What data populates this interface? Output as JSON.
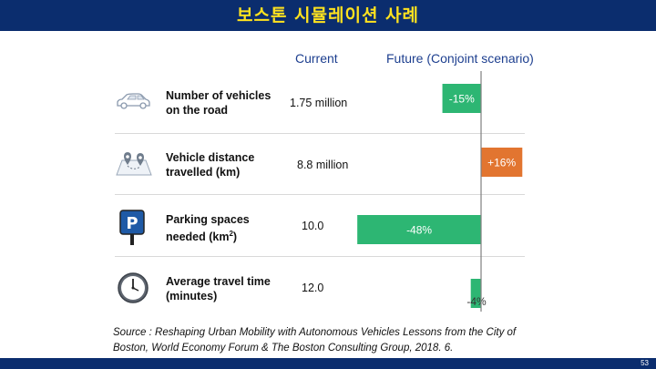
{
  "slide": {
    "title": "보스톤 시뮬레이션 사례",
    "page_number": "53"
  },
  "headers": {
    "current": "Current",
    "future": "Future (Conjoint scenario)"
  },
  "rows": [
    {
      "label_line1": "Number of vehicles",
      "label_line2": "on the road",
      "current": "1.75 million",
      "change_label": "-15%",
      "icon": "car-icon"
    },
    {
      "label_line1": "Vehicle distance",
      "label_line2": "travelled (km)",
      "current": "8.8 million",
      "change_label": "+16%",
      "icon": "map-pin-icon"
    },
    {
      "label_line1": "Parking spaces",
      "label_line2": "needed (km",
      "label_sup": "2",
      "label_close": ")",
      "current": "10.0",
      "change_label": "-48%",
      "icon": "parking-sign-icon"
    },
    {
      "label_line1": "Average travel time",
      "label_line2": "(minutes)",
      "current": "12.0",
      "change_label": "-4%",
      "icon": "clock-icon"
    }
  ],
  "source": "Source : Reshaping Urban Mobility with Autonomous Vehicles Lessons from the City of Boston, World Economy Forum & The Boston Consulting Group, 2018. 6.",
  "colors": {
    "decrease": "#2db673",
    "increase": "#e27530",
    "header": "#1d3f8f",
    "title": "#ffe21f",
    "bar": "#0b2d6e"
  },
  "chart_data": {
    "type": "bar",
    "orientation": "horizontal",
    "categories": [
      "Number of vehicles on the road",
      "Vehicle distance travelled (km)",
      "Parking spaces needed (km2)",
      "Average travel time (minutes)"
    ],
    "values": [
      -15,
      16,
      -48,
      -4
    ],
    "data_labels": [
      "-15%",
      "+16%",
      "-48%",
      "-4%"
    ],
    "unit": "%",
    "baseline": 0,
    "xlim": [
      -50,
      18
    ],
    "grid": false,
    "legend": "none"
  }
}
